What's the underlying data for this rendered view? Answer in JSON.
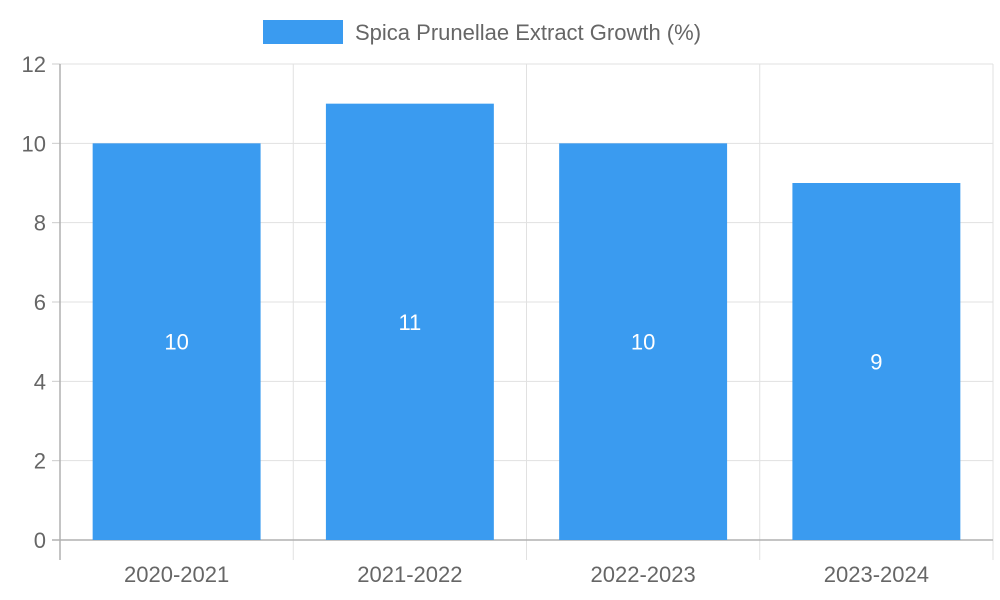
{
  "chart_data": {
    "type": "bar",
    "categories": [
      "2020-2021",
      "2021-2022",
      "2022-2023",
      "2023-2024"
    ],
    "series": [
      {
        "name": "Spica Prunellae Extract Growth (%)",
        "values": [
          10,
          11,
          10,
          9
        ],
        "color": "#3a9bf0"
      }
    ],
    "ylim": [
      0,
      12
    ],
    "yticks": [
      "0",
      "2",
      "4",
      "6",
      "8",
      "10",
      "12"
    ],
    "data_labels": [
      "10",
      "11",
      "10",
      "9"
    ],
    "grid": true,
    "legend_position": "top-center"
  }
}
